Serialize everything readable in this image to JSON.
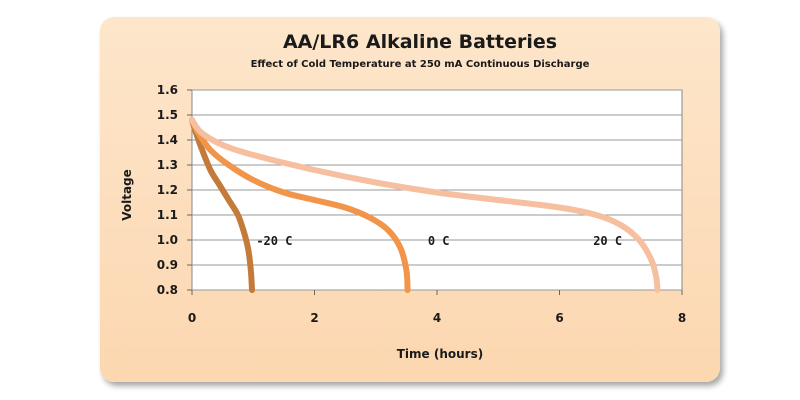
{
  "chart_data": {
    "type": "line",
    "title": "AA/LR6 Alkaline Batteries",
    "subtitle": "Effect of Cold Temperature at 250 mA Continuous Discharge",
    "xlabel": "Time (hours)",
    "ylabel": "Voltage",
    "xlim": [
      0,
      8
    ],
    "ylim": [
      0.8,
      1.6
    ],
    "xticks": [
      "0",
      "2",
      "4",
      "6",
      "8"
    ],
    "yticks": [
      "0.8",
      "0.9",
      "1.0",
      "1.1",
      "1.2",
      "1.3",
      "1.4",
      "1.5",
      "1.6"
    ],
    "grid": true,
    "series": [
      {
        "name": "-20 C",
        "color": "#c47a3a",
        "points": [
          [
            0,
            1.48
          ],
          [
            0.05,
            1.44
          ],
          [
            0.15,
            1.37
          ],
          [
            0.3,
            1.28
          ],
          [
            0.45,
            1.22
          ],
          [
            0.6,
            1.16
          ],
          [
            0.75,
            1.1
          ],
          [
            0.85,
            1.03
          ],
          [
            0.92,
            0.96
          ],
          [
            0.96,
            0.88
          ],
          [
            0.98,
            0.8
          ]
        ]
      },
      {
        "name": "0 C",
        "color": "#f0954a",
        "points": [
          [
            0,
            1.48
          ],
          [
            0.1,
            1.43
          ],
          [
            0.3,
            1.36
          ],
          [
            0.6,
            1.3
          ],
          [
            1.0,
            1.24
          ],
          [
            1.5,
            1.19
          ],
          [
            2.0,
            1.16
          ],
          [
            2.5,
            1.13
          ],
          [
            2.9,
            1.09
          ],
          [
            3.2,
            1.04
          ],
          [
            3.4,
            0.97
          ],
          [
            3.5,
            0.88
          ],
          [
            3.52,
            0.8
          ]
        ]
      },
      {
        "name": "20 C",
        "color": "#f6bfa0",
        "points": [
          [
            0,
            1.48
          ],
          [
            0.15,
            1.43
          ],
          [
            0.5,
            1.38
          ],
          [
            1.0,
            1.34
          ],
          [
            2.0,
            1.28
          ],
          [
            3.0,
            1.23
          ],
          [
            4.0,
            1.19
          ],
          [
            5.0,
            1.16
          ],
          [
            6.0,
            1.13
          ],
          [
            6.6,
            1.1
          ],
          [
            7.0,
            1.06
          ],
          [
            7.3,
            1.0
          ],
          [
            7.5,
            0.92
          ],
          [
            7.58,
            0.85
          ],
          [
            7.6,
            0.8
          ]
        ]
      }
    ],
    "annotations": [
      {
        "text": "-20 C",
        "x": 1.05,
        "y": 0.98
      },
      {
        "text": "0 C",
        "x": 3.85,
        "y": 0.98
      },
      {
        "text": "20 C",
        "x": 6.55,
        "y": 0.98
      }
    ]
  }
}
